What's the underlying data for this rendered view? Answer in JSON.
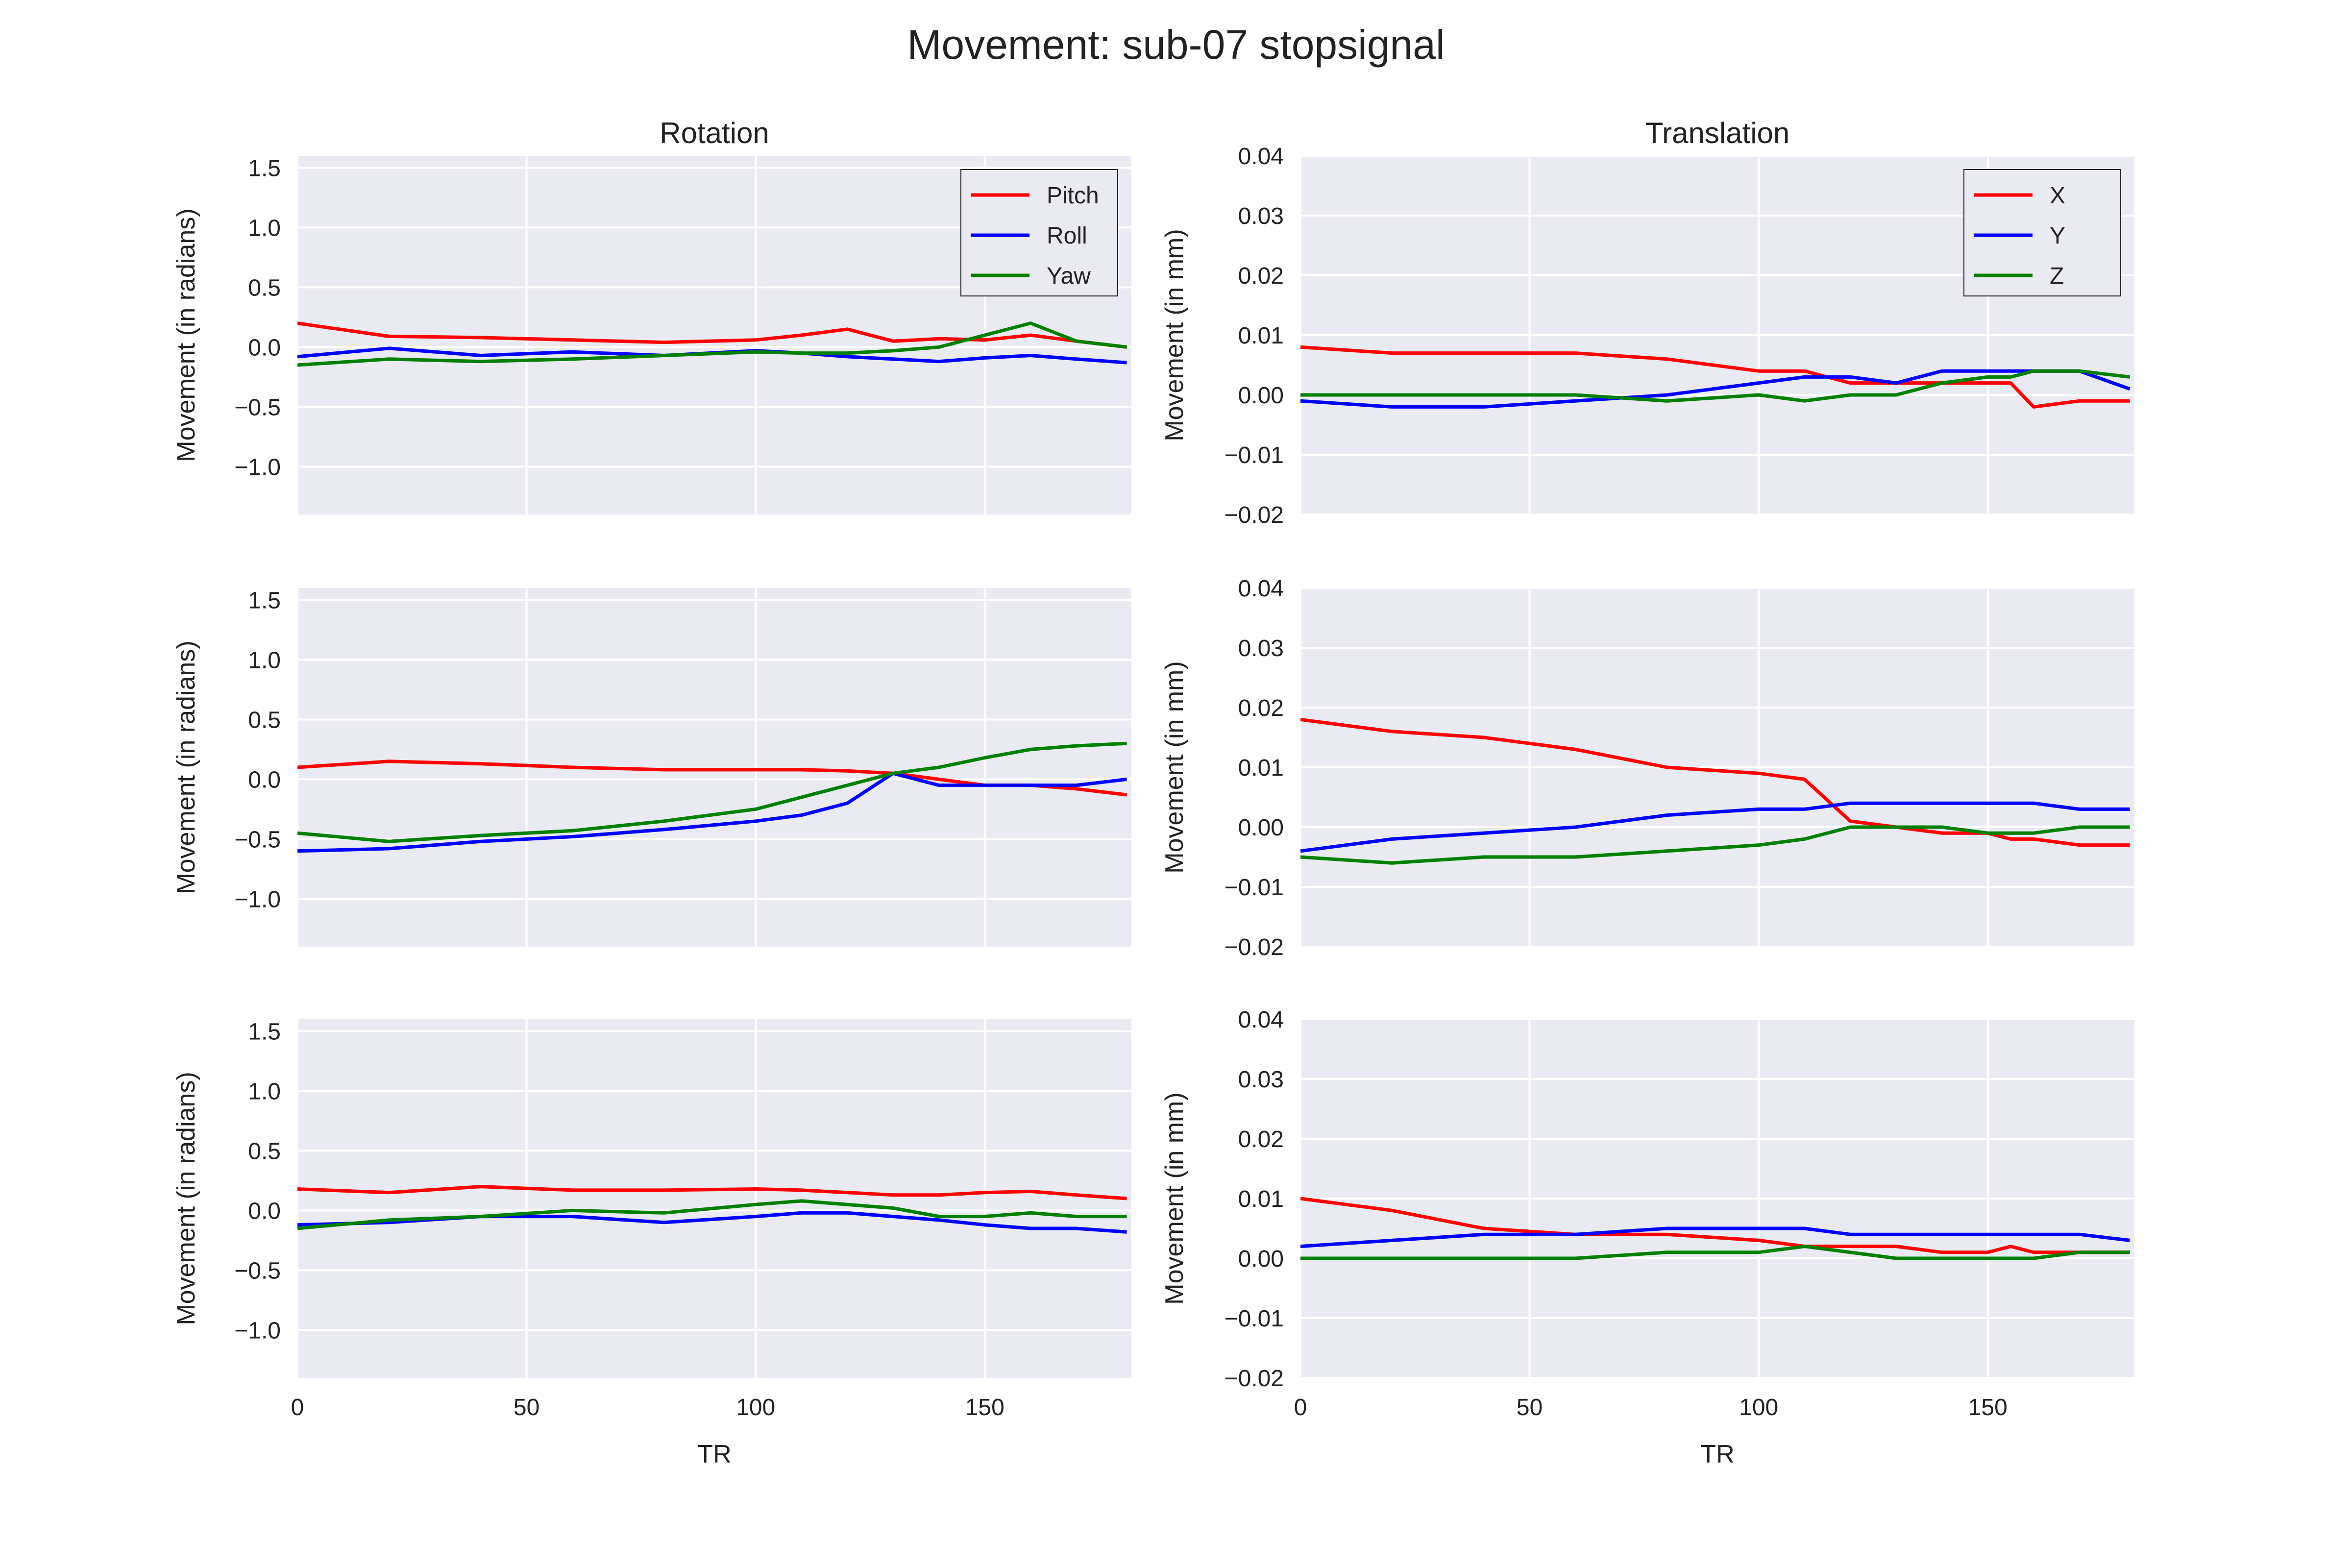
{
  "suptitle": "Movement: sub-07 stopsignal",
  "columns": {
    "rotation": {
      "title": "Rotation",
      "ylabel": "Movement (in radians)",
      "ylim": [
        -1.4,
        1.6
      ],
      "yticks": [
        1.5,
        1.0,
        0.5,
        0.0,
        -0.5,
        -1.0
      ],
      "ytick_labels": [
        "1.5",
        "1.0",
        "0.5",
        "0.0",
        "−0.5",
        "−1.0"
      ],
      "legend": [
        "Pitch",
        "Roll",
        "Yaw"
      ],
      "legend_location": "upper right"
    },
    "translation": {
      "title": "Translation",
      "ylabel": "Movement (in mm)",
      "ylim": [
        -0.02,
        0.04
      ],
      "yticks": [
        0.04,
        0.03,
        0.02,
        0.01,
        0.0,
        -0.01,
        -0.02
      ],
      "ytick_labels": [
        "0.04",
        "0.03",
        "0.02",
        "0.01",
        "0.00",
        "−0.01",
        "−0.02"
      ],
      "legend": [
        "X",
        "Y",
        "Z"
      ],
      "legend_location": "upper right"
    }
  },
  "xaxis": {
    "label": "TR",
    "xlim": [
      0,
      182
    ],
    "ticks": [
      0,
      50,
      100,
      150
    ],
    "tick_labels": [
      "0",
      "50",
      "100",
      "150"
    ]
  },
  "series_colors": [
    "#ff0000",
    "#0000ff",
    "#008000"
  ],
  "background": {
    "plot": "#eaeaf2",
    "grid": "#ffffff"
  },
  "chart_data": [
    {
      "type": "line",
      "row": 1,
      "column": "rotation",
      "grid": true,
      "title": "Rotation",
      "xlabel": "",
      "ylabel": "Movement (in radians)",
      "ylim": [
        -1.4,
        1.6
      ],
      "x": [
        0,
        20,
        40,
        60,
        80,
        100,
        110,
        120,
        130,
        140,
        150,
        160,
        170,
        181
      ],
      "series": [
        {
          "name": "Pitch",
          "values": [
            0.2,
            0.09,
            0.08,
            0.06,
            0.04,
            0.06,
            0.1,
            0.15,
            0.05,
            0.07,
            0.06,
            0.1,
            0.05,
            0.0
          ]
        },
        {
          "name": "Roll",
          "values": [
            -0.08,
            -0.01,
            -0.07,
            -0.04,
            -0.07,
            -0.03,
            -0.05,
            -0.08,
            -0.1,
            -0.12,
            -0.09,
            -0.07,
            -0.1,
            -0.13
          ]
        },
        {
          "name": "Yaw",
          "values": [
            -0.15,
            -0.1,
            -0.12,
            -0.1,
            -0.07,
            -0.04,
            -0.05,
            -0.05,
            -0.03,
            0.0,
            0.1,
            0.2,
            0.05,
            0.0
          ]
        }
      ]
    },
    {
      "type": "line",
      "row": 1,
      "column": "translation",
      "grid": true,
      "title": "Translation",
      "xlabel": "",
      "ylabel": "Movement (in mm)",
      "ylim": [
        -0.02,
        0.04
      ],
      "x": [
        0,
        20,
        40,
        60,
        80,
        100,
        110,
        120,
        130,
        140,
        150,
        155,
        160,
        170,
        181
      ],
      "series": [
        {
          "name": "X",
          "values": [
            0.008,
            0.007,
            0.007,
            0.007,
            0.006,
            0.004,
            0.004,
            0.002,
            0.002,
            0.002,
            0.002,
            0.002,
            -0.002,
            -0.001,
            -0.001
          ]
        },
        {
          "name": "Y",
          "values": [
            -0.001,
            -0.002,
            -0.002,
            -0.001,
            0.0,
            0.002,
            0.003,
            0.003,
            0.002,
            0.004,
            0.004,
            0.004,
            0.004,
            0.004,
            0.001
          ]
        },
        {
          "name": "Z",
          "values": [
            0.0,
            0.0,
            0.0,
            0.0,
            -0.001,
            0.0,
            -0.001,
            0.0,
            0.0,
            0.002,
            0.003,
            0.003,
            0.004,
            0.004,
            0.003
          ]
        }
      ]
    },
    {
      "type": "line",
      "row": 2,
      "column": "rotation",
      "grid": true,
      "title": "",
      "xlabel": "",
      "ylabel": "Movement (in radians)",
      "ylim": [
        -1.4,
        1.6
      ],
      "x": [
        0,
        20,
        40,
        60,
        80,
        100,
        110,
        120,
        130,
        140,
        150,
        160,
        170,
        181
      ],
      "series": [
        {
          "name": "Pitch",
          "values": [
            0.1,
            0.15,
            0.13,
            0.1,
            0.08,
            0.08,
            0.08,
            0.07,
            0.05,
            0.0,
            -0.05,
            -0.05,
            -0.08,
            -0.13
          ]
        },
        {
          "name": "Roll",
          "values": [
            -0.6,
            -0.58,
            -0.52,
            -0.48,
            -0.42,
            -0.35,
            -0.3,
            -0.2,
            0.05,
            -0.05,
            -0.05,
            -0.05,
            -0.05,
            0.0
          ]
        },
        {
          "name": "Yaw",
          "values": [
            -0.45,
            -0.52,
            -0.47,
            -0.43,
            -0.35,
            -0.25,
            -0.15,
            -0.05,
            0.05,
            0.1,
            0.18,
            0.25,
            0.28,
            0.3
          ]
        }
      ]
    },
    {
      "type": "line",
      "row": 2,
      "column": "translation",
      "grid": true,
      "title": "",
      "xlabel": "",
      "ylabel": "Movement (in mm)",
      "ylim": [
        -0.02,
        0.04
      ],
      "x": [
        0,
        20,
        40,
        60,
        80,
        100,
        110,
        120,
        130,
        140,
        150,
        155,
        160,
        170,
        181
      ],
      "series": [
        {
          "name": "X",
          "values": [
            0.018,
            0.016,
            0.015,
            0.013,
            0.01,
            0.009,
            0.008,
            0.001,
            0.0,
            -0.001,
            -0.001,
            -0.002,
            -0.002,
            -0.003,
            -0.003
          ]
        },
        {
          "name": "Y",
          "values": [
            -0.004,
            -0.002,
            -0.001,
            0.0,
            0.002,
            0.003,
            0.003,
            0.004,
            0.004,
            0.004,
            0.004,
            0.004,
            0.004,
            0.003,
            0.003
          ]
        },
        {
          "name": "Z",
          "values": [
            -0.005,
            -0.006,
            -0.005,
            -0.005,
            -0.004,
            -0.003,
            -0.002,
            0.0,
            0.0,
            0.0,
            -0.001,
            -0.001,
            -0.001,
            0.0,
            0.0
          ]
        }
      ]
    },
    {
      "type": "line",
      "row": 3,
      "column": "rotation",
      "grid": true,
      "title": "",
      "xlabel": "TR",
      "ylabel": "Movement (in radians)",
      "ylim": [
        -1.4,
        1.6
      ],
      "x": [
        0,
        20,
        40,
        60,
        80,
        100,
        110,
        120,
        130,
        140,
        150,
        160,
        170,
        181
      ],
      "series": [
        {
          "name": "Pitch",
          "values": [
            0.18,
            0.15,
            0.2,
            0.17,
            0.17,
            0.18,
            0.17,
            0.15,
            0.13,
            0.13,
            0.15,
            0.16,
            0.13,
            0.1
          ]
        },
        {
          "name": "Roll",
          "values": [
            -0.12,
            -0.1,
            -0.05,
            -0.05,
            -0.1,
            -0.05,
            -0.02,
            -0.02,
            -0.05,
            -0.08,
            -0.12,
            -0.15,
            -0.15,
            -0.18
          ]
        },
        {
          "name": "Yaw",
          "values": [
            -0.15,
            -0.08,
            -0.05,
            0.0,
            -0.02,
            0.05,
            0.08,
            0.05,
            0.02,
            -0.05,
            -0.05,
            -0.02,
            -0.05,
            -0.05
          ]
        }
      ]
    },
    {
      "type": "line",
      "row": 3,
      "column": "translation",
      "grid": true,
      "title": "",
      "xlabel": "TR",
      "ylabel": "Movement (in mm)",
      "ylim": [
        -0.02,
        0.04
      ],
      "x": [
        0,
        20,
        40,
        60,
        80,
        100,
        110,
        120,
        130,
        140,
        150,
        155,
        160,
        170,
        181
      ],
      "series": [
        {
          "name": "X",
          "values": [
            0.01,
            0.008,
            0.005,
            0.004,
            0.004,
            0.003,
            0.002,
            0.002,
            0.002,
            0.001,
            0.001,
            0.002,
            0.001,
            0.001,
            0.001
          ]
        },
        {
          "name": "Y",
          "values": [
            0.002,
            0.003,
            0.004,
            0.004,
            0.005,
            0.005,
            0.005,
            0.004,
            0.004,
            0.004,
            0.004,
            0.004,
            0.004,
            0.004,
            0.003
          ]
        },
        {
          "name": "Z",
          "values": [
            0.0,
            0.0,
            0.0,
            0.0,
            0.001,
            0.001,
            0.002,
            0.001,
            0.0,
            0.0,
            0.0,
            0.0,
            0.0,
            0.001,
            0.001
          ]
        }
      ]
    }
  ]
}
